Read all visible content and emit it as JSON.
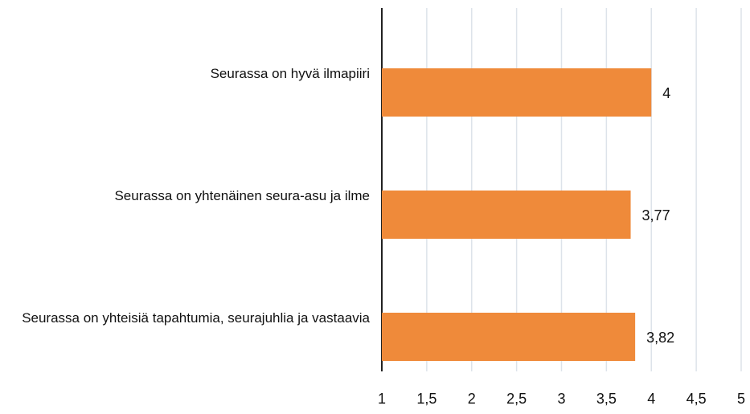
{
  "chart_data": {
    "type": "bar",
    "orientation": "horizontal",
    "categories": [
      "Seurassa on hyvä ilmapiiri",
      "Seurassa on yhtenäinen seura-asu ja ilme",
      "Seurassa on yhteisiä tapahtumia, seurajuhlia ja vastaavia"
    ],
    "values": [
      4,
      3.77,
      3.82
    ],
    "value_labels": [
      "4",
      "3,77",
      "3,82"
    ],
    "color": "#ef8a3a",
    "xlim": [
      1,
      5
    ],
    "xticks": [
      1,
      {
        "value": 1.5,
        "label": "1,5"
      },
      2,
      {
        "value": 2.5,
        "label": "2,5"
      },
      3,
      {
        "value": 3.5,
        "label": "3,5"
      },
      4,
      {
        "value": 4.5,
        "label": "4,5"
      },
      5
    ],
    "grid": true
  }
}
